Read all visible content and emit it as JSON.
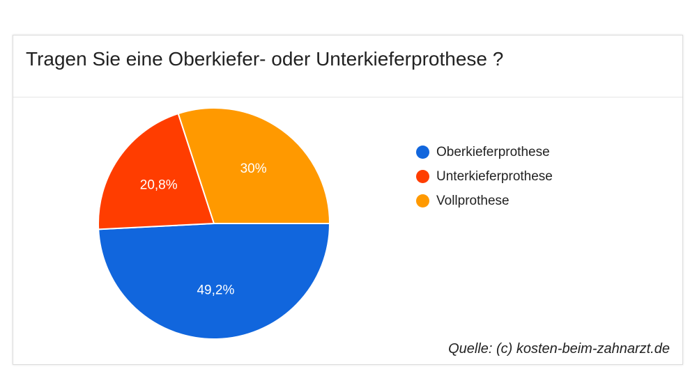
{
  "chart_data": {
    "type": "pie",
    "title": "Tragen Sie eine Oberkiefer- oder Unterkieferprothese ?",
    "categories": [
      "Oberkieferprothese",
      "Unterkieferprothese",
      "Vollprothese"
    ],
    "values": [
      49.2,
      20.8,
      30
    ],
    "value_labels": [
      "49,2%",
      "20,8%",
      "30%"
    ],
    "colors": [
      "#1166dd",
      "#ff3d00",
      "#ff9900"
    ],
    "legend_position": "right",
    "source": "Quelle: (c) kosten-beim-zahnarzt.de"
  }
}
